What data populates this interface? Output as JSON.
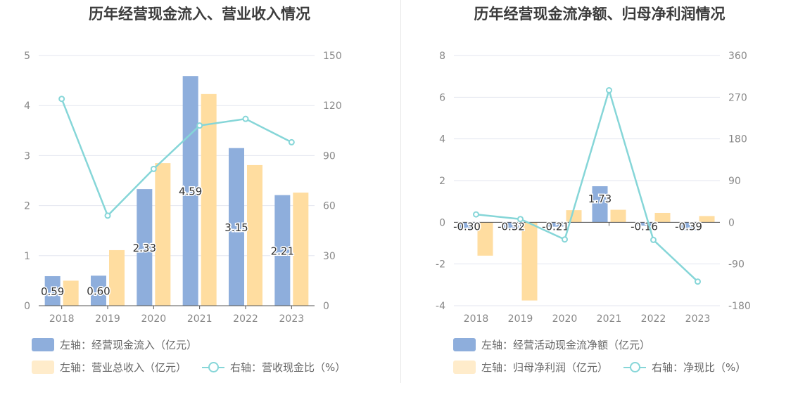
{
  "colors": {
    "bar_primary": "#8eaedc",
    "bar_secondary": "#ffdda0",
    "bar_secondary_light": "#ffeccb",
    "line": "#86d6d8",
    "grid": "#e3e5ef",
    "axis_text": "#888888"
  },
  "left": {
    "title": "历年经营现金流入、营业收入情况",
    "legend": {
      "bars1": "左轴：经营现金流入（亿元）",
      "bars2": "左轴：营业总收入（亿元）",
      "line": "右轴：营收现金比（%）"
    }
  },
  "right": {
    "title": "历年经营现金流净额、归母净利润情况",
    "legend": {
      "bars1": "左轴：经营活动现金流净额（亿元）",
      "bars2": "左轴：归母净利润（亿元）",
      "line": "右轴：净现比（%）"
    }
  },
  "chart_data": [
    {
      "type": "bar",
      "title": "历年经营现金流入、营业收入情况",
      "categories": [
        "2018",
        "2019",
        "2020",
        "2021",
        "2022",
        "2023"
      ],
      "y_left": {
        "lim": [
          0,
          5
        ],
        "ticks": [
          "0",
          "1",
          "2",
          "3",
          "4",
          "5"
        ]
      },
      "y_right": {
        "lim": [
          0,
          150
        ],
        "ticks": [
          "0",
          "30",
          "60",
          "90",
          "120",
          "150"
        ]
      },
      "series": [
        {
          "name": "左轴：经营现金流入（亿元）",
          "axis": "left",
          "kind": "bar",
          "values": [
            0.59,
            0.6,
            2.33,
            4.59,
            3.15,
            2.21
          ],
          "labels": [
            "0.59",
            "0.60",
            "2.33",
            "4.59",
            "3.15",
            "2.21"
          ]
        },
        {
          "name": "左轴：营业总收入（亿元）",
          "axis": "left",
          "kind": "bar",
          "values": [
            0.5,
            1.11,
            2.85,
            4.23,
            2.81,
            2.26
          ]
        },
        {
          "name": "右轴：营收现金比（%）",
          "axis": "right",
          "kind": "line",
          "values": [
            124,
            54,
            82,
            108,
            112,
            98
          ]
        }
      ],
      "grid": true,
      "legend_position": "bottom-left"
    },
    {
      "type": "bar",
      "title": "历年经营现金流净额、归母净利润情况",
      "categories": [
        "2018",
        "2019",
        "2020",
        "2021",
        "2022",
        "2023"
      ],
      "y_left": {
        "lim": [
          -4,
          8
        ],
        "ticks": [
          "-4",
          "-2",
          "0",
          "2",
          "4",
          "6",
          "8"
        ]
      },
      "y_right": {
        "lim": [
          -180,
          360
        ],
        "ticks": [
          "-180",
          "-90",
          "0",
          "90",
          "180",
          "270",
          "360"
        ]
      },
      "series": [
        {
          "name": "左轴：经营活动现金流净额（亿元）",
          "axis": "left",
          "kind": "bar",
          "values": [
            -0.3,
            -0.32,
            -0.21,
            1.73,
            -0.16,
            -0.39
          ],
          "labels": [
            "-0.30",
            "-0.32",
            "-0.21",
            "1.73",
            "-0.16",
            "-0.39"
          ]
        },
        {
          "name": "左轴：归母净利润（亿元）",
          "axis": "left",
          "kind": "bar",
          "values": [
            -1.6,
            -3.75,
            0.58,
            0.6,
            0.45,
            0.3
          ]
        },
        {
          "name": "右轴：净现比（%）",
          "axis": "right",
          "kind": "line",
          "values": [
            17,
            7,
            -37,
            285,
            -38,
            -128
          ]
        }
      ],
      "grid": true,
      "legend_position": "bottom-left"
    }
  ]
}
